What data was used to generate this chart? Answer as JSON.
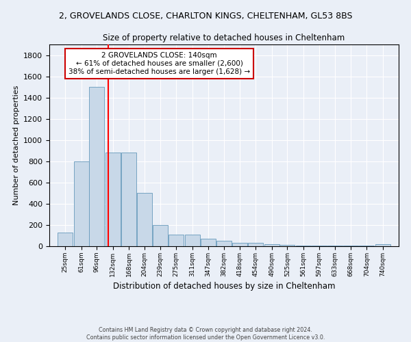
{
  "title_line1": "2, GROVELANDS CLOSE, CHARLTON KINGS, CHELTENHAM, GL53 8BS",
  "title_line2": "Size of property relative to detached houses in Cheltenham",
  "xlabel": "Distribution of detached houses by size in Cheltenham",
  "ylabel": "Number of detached properties",
  "footer_line1": "Contains HM Land Registry data © Crown copyright and database right 2024.",
  "footer_line2": "Contains public sector information licensed under the Open Government Licence v3.0.",
  "annotation_title": "2 GROVELANDS CLOSE: 140sqm",
  "annotation_line2": "← 61% of detached houses are smaller (2,600)",
  "annotation_line3": "38% of semi-detached houses are larger (1,628) →",
  "bin_labels": [
    "25sqm",
    "61sqm",
    "96sqm",
    "132sqm",
    "168sqm",
    "204sqm",
    "239sqm",
    "275sqm",
    "311sqm",
    "347sqm",
    "382sqm",
    "418sqm",
    "454sqm",
    "490sqm",
    "525sqm",
    "561sqm",
    "597sqm",
    "633sqm",
    "668sqm",
    "704sqm",
    "740sqm"
  ],
  "bin_edges": [
    25,
    61,
    96,
    132,
    168,
    204,
    239,
    275,
    311,
    347,
    382,
    418,
    454,
    490,
    525,
    561,
    597,
    633,
    668,
    704,
    740
  ],
  "bar_values": [
    130,
    800,
    1500,
    880,
    880,
    500,
    200,
    110,
    110,
    70,
    50,
    35,
    30,
    20,
    15,
    5,
    5,
    5,
    5,
    5,
    20
  ],
  "bar_color": "#c8d8e8",
  "bar_edgecolor": "#6699bb",
  "redline_x": 140,
  "ylim": [
    0,
    1900
  ],
  "yticks": [
    0,
    200,
    400,
    600,
    800,
    1000,
    1200,
    1400,
    1600,
    1800
  ],
  "bg_color": "#eaeff7",
  "annotation_box_facecolor": "#ffffff",
  "annotation_box_edgecolor": "#cc0000"
}
